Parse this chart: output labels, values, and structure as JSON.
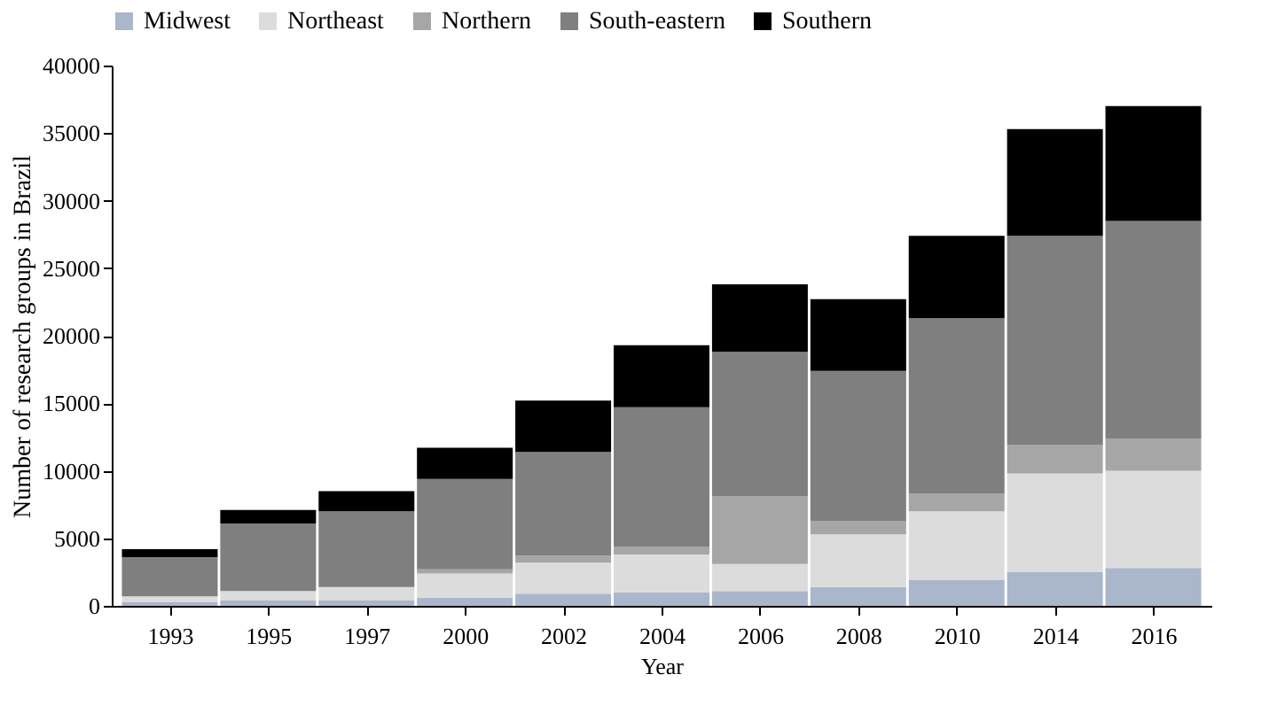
{
  "chart_data": {
    "type": "bar",
    "stacked": true,
    "xlabel": "Year",
    "ylabel": "Number of research groups in Brazil",
    "categories": [
      "1993",
      "1995",
      "1997",
      "2000",
      "2002",
      "2004",
      "2006",
      "2008",
      "2010",
      "2014",
      "2016"
    ],
    "series": [
      {
        "name": "Midwest",
        "color": "#a9b6cc",
        "values": [
          300,
          400,
          400,
          600,
          900,
          1000,
          1100,
          1400,
          1900,
          2500,
          2800
        ]
      },
      {
        "name": "Northeast",
        "color": "#dcdcdc",
        "values": [
          400,
          700,
          1000,
          1800,
          2300,
          2800,
          2000,
          3900,
          5100,
          7300,
          7200
        ]
      },
      {
        "name": "Northern",
        "color": "#a6a6a6",
        "values": [
          null,
          null,
          null,
          300,
          500,
          600,
          5000,
          1000,
          1300,
          2100,
          2400
        ]
      },
      {
        "name": "South-eastern",
        "color": "#7f7f7f",
        "values": [
          2900,
          5000,
          5600,
          6700,
          7700,
          10300,
          10700,
          11100,
          13000,
          15500,
          16100
        ]
      },
      {
        "name": "Southern",
        "color": "#000000",
        "values": [
          600,
          1000,
          1500,
          2300,
          3800,
          4600,
          5000,
          5300,
          6100,
          7900,
          8500
        ]
      }
    ],
    "ylim": [
      0,
      40000
    ],
    "yticks": [
      0,
      5000,
      10000,
      15000,
      20000,
      25000,
      30000,
      35000,
      40000
    ],
    "grid": false,
    "legend": "top"
  }
}
